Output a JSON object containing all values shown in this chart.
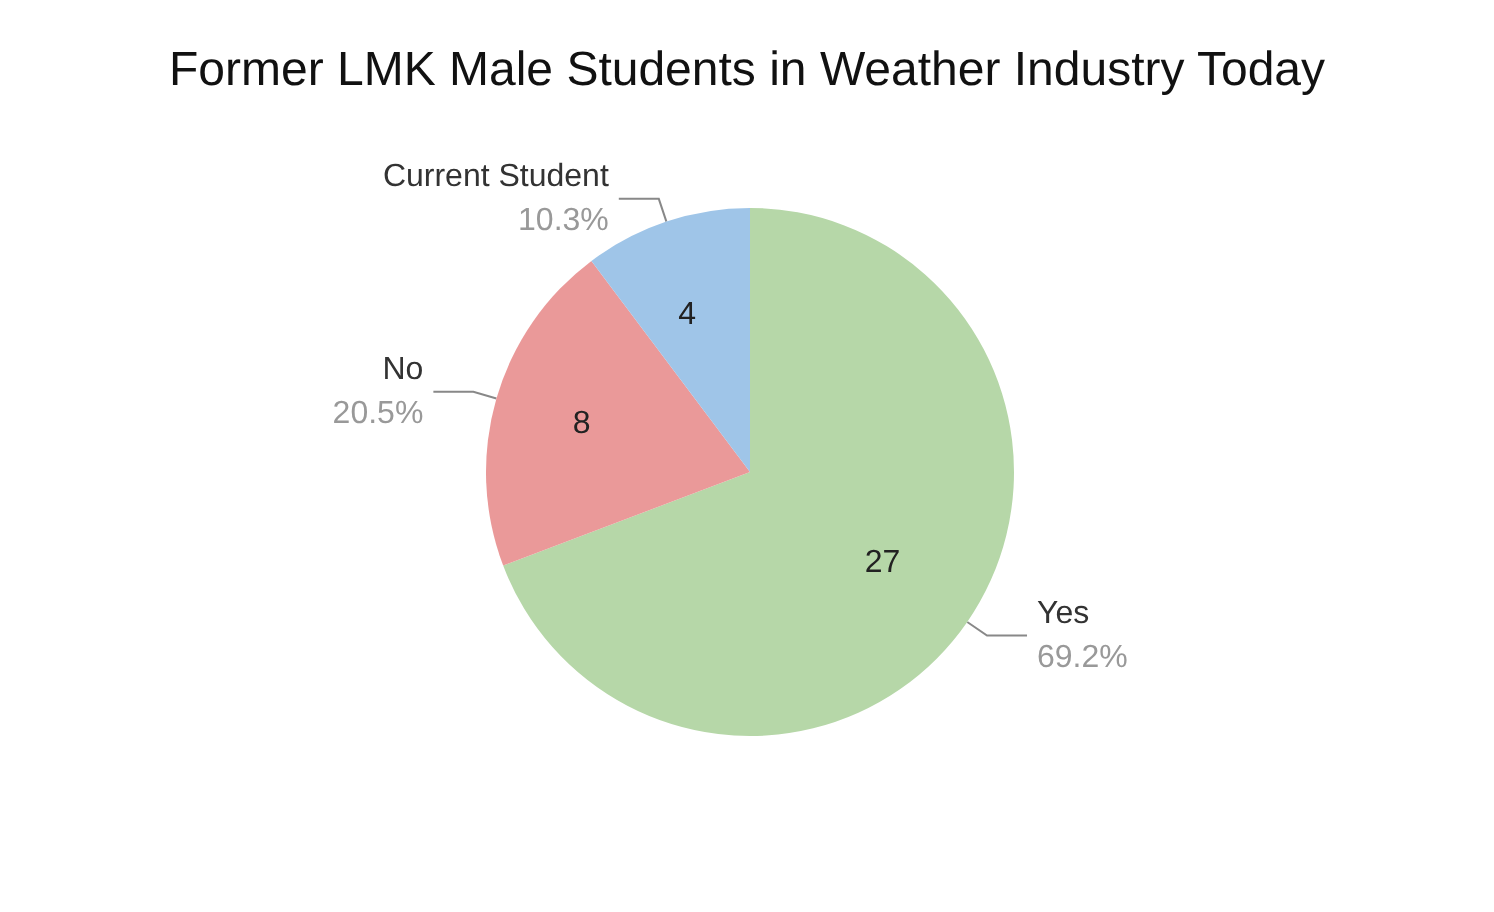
{
  "chart_data": {
    "type": "pie",
    "title": "Former LMK Male Students in Weather Industry Today",
    "categories": [
      "Yes",
      "No",
      "Current Student"
    ],
    "values": [
      27,
      8,
      4
    ],
    "colors": [
      "#b6d7a8",
      "#ea9999",
      "#9fc5e8"
    ],
    "annotations": [
      {
        "text": "69.2%",
        "x": "Yes"
      },
      {
        "text": "20.5%",
        "x": "No"
      },
      {
        "text": "10.3%",
        "x": "Current Student"
      }
    ],
    "data_labels": true,
    "legend": false
  }
}
